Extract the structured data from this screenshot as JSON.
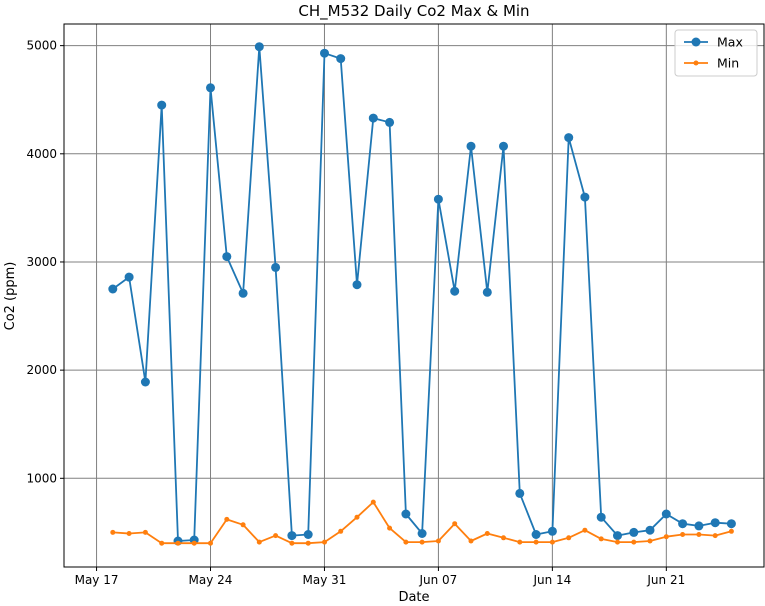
{
  "chart_data": {
    "type": "line",
    "title": "CH_M532 Daily Co2 Max & Min",
    "xlabel": "Date",
    "ylabel": "Co2 (ppm)",
    "x": [
      "2020-05-18",
      "2020-05-19",
      "2020-05-20",
      "2020-05-21",
      "2020-05-22",
      "2020-05-23",
      "2020-05-24",
      "2020-05-25",
      "2020-05-26",
      "2020-05-27",
      "2020-05-28",
      "2020-05-29",
      "2020-05-30",
      "2020-05-31",
      "2020-06-01",
      "2020-06-02",
      "2020-06-03",
      "2020-06-04",
      "2020-06-05",
      "2020-06-06",
      "2020-06-07",
      "2020-06-08",
      "2020-06-09",
      "2020-06-10",
      "2020-06-11",
      "2020-06-12",
      "2020-06-13",
      "2020-06-14",
      "2020-06-15",
      "2020-06-16",
      "2020-06-17",
      "2020-06-18",
      "2020-06-19",
      "2020-06-20",
      "2020-06-21",
      "2020-06-22",
      "2020-06-23",
      "2020-06-24",
      "2020-06-25"
    ],
    "x_tick_dates": [
      "2020-05-17",
      "2020-05-24",
      "2020-05-31",
      "2020-06-07",
      "2020-06-14",
      "2020-06-21"
    ],
    "x_tick_labels": [
      "May 17",
      "May 24",
      "May 31",
      "Jun 07",
      "Jun 14",
      "Jun 21"
    ],
    "xlim": [
      "2020-05-15",
      "2020-06-27"
    ],
    "y_ticks": [
      1000,
      2000,
      3000,
      4000,
      5000
    ],
    "ylim": [
      180,
      5200
    ],
    "grid": true,
    "legend_position": "top-right",
    "series": [
      {
        "name": "Max",
        "color": "#1f77b4",
        "marker": "circle",
        "values": [
          2750,
          2860,
          1890,
          4450,
          420,
          430,
          4610,
          3050,
          2710,
          4990,
          2950,
          470,
          480,
          4930,
          4880,
          2790,
          4330,
          4290,
          670,
          490,
          3580,
          2730,
          4070,
          2720,
          4070,
          860,
          480,
          510,
          4150,
          3600,
          640,
          470,
          500,
          520,
          670,
          580,
          560,
          590,
          580
        ]
      },
      {
        "name": "Min",
        "color": "#ff7f0e",
        "marker": "small-dot",
        "values": [
          500,
          490,
          500,
          400,
          400,
          400,
          400,
          620,
          570,
          410,
          470,
          400,
          400,
          410,
          510,
          640,
          780,
          540,
          410,
          410,
          420,
          580,
          420,
          490,
          450,
          410,
          410,
          410,
          450,
          520,
          440,
          410,
          410,
          420,
          460,
          480,
          480,
          470,
          510
        ]
      }
    ]
  }
}
